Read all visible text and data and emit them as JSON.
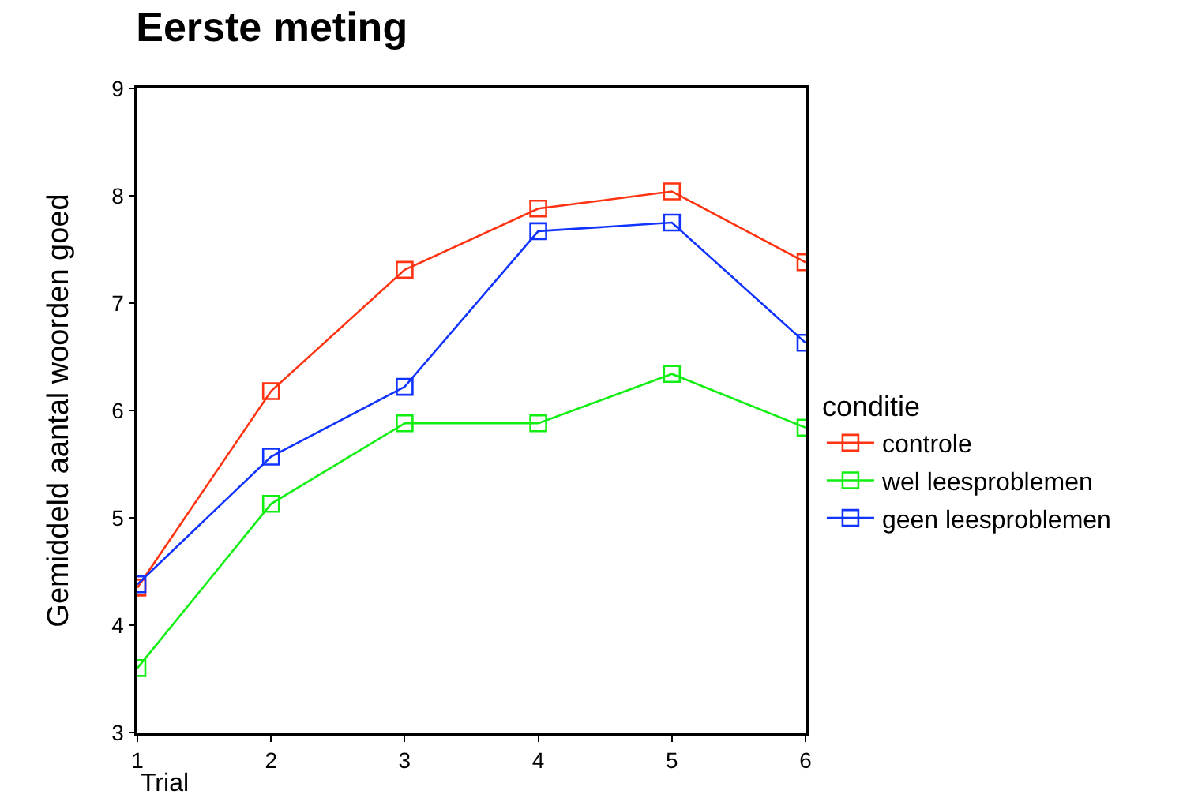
{
  "chart_data": {
    "type": "line",
    "title": "Eerste meting",
    "xlabel": "Trial",
    "ylabel": "Gemiddeld aantal woorden goed",
    "legend_title": "conditie",
    "x": [
      1,
      2,
      3,
      4,
      5,
      6
    ],
    "series": [
      {
        "name": "controle",
        "color": "#ff3311",
        "values": [
          4.35,
          6.18,
          7.31,
          7.88,
          8.04,
          7.38
        ]
      },
      {
        "name": "wel leesproblemen",
        "color": "#11ee11",
        "values": [
          3.6,
          5.13,
          5.88,
          5.88,
          6.34,
          5.84
        ]
      },
      {
        "name": "geen leesproblemen",
        "color": "#1133ff",
        "values": [
          4.38,
          5.57,
          6.22,
          7.67,
          7.75,
          6.63
        ]
      }
    ],
    "xlim": [
      1,
      6
    ],
    "xticks": [
      1,
      2,
      3,
      4,
      5,
      6
    ],
    "ylim": [
      3,
      9
    ],
    "yticks": [
      3,
      4,
      5,
      6,
      7,
      8,
      9
    ],
    "legend": "right",
    "marker": "square",
    "line_style": "solid"
  }
}
